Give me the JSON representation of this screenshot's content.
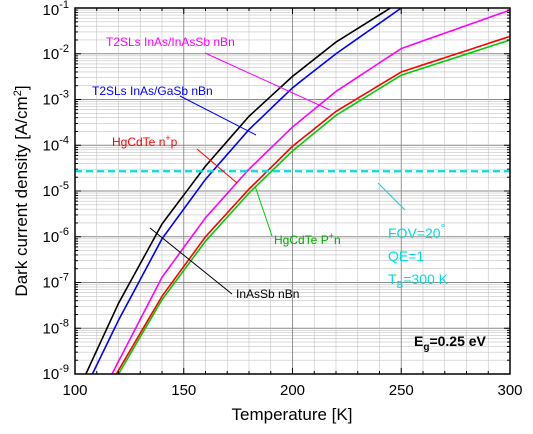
{
  "chart_data": {
    "type": "line",
    "xlabel": "Temperature [K]",
    "ylabel_main": "Dark current density [A/cm",
    "ylabel_sup": "2",
    "ylabel_end": "]",
    "xlim": [
      100,
      300
    ],
    "ylim": [
      1e-09,
      0.1
    ],
    "y_scale": "log",
    "grid": true,
    "x_ticks": [
      "100",
      "150",
      "200",
      "250",
      "300"
    ],
    "x_tick_values": [
      100,
      150,
      200,
      250,
      300
    ],
    "y_ticks": [
      {
        "base": "10",
        "exp": "-9",
        "value": 1e-09
      },
      {
        "base": "10",
        "exp": "-8",
        "value": 1e-08
      },
      {
        "base": "10",
        "exp": "-7",
        "value": 1e-07
      },
      {
        "base": "10",
        "exp": "-6",
        "value": 1e-06
      },
      {
        "base": "10",
        "exp": "-5",
        "value": 1e-05
      },
      {
        "base": "10",
        "exp": "-4",
        "value": 0.0001
      },
      {
        "base": "10",
        "exp": "-3",
        "value": 0.001
      },
      {
        "base": "10",
        "exp": "-2",
        "value": 0.01
      },
      {
        "base": "10",
        "exp": "-1",
        "value": 0.1
      }
    ],
    "series": [
      {
        "name": "InAsSb nBn",
        "color": "#000000",
        "x": [
          105,
          120,
          140,
          160,
          180,
          200,
          220,
          245
        ],
        "y": [
          1e-09,
          3.5e-08,
          1.9e-06,
          3.5e-05,
          0.00043,
          0.0032,
          0.018,
          0.1
        ]
      },
      {
        "name": "T2SLs InAs/GaSb nBn",
        "color": "#0000ff",
        "x": [
          108,
          120,
          140,
          160,
          180,
          200,
          220,
          250
        ],
        "y": [
          1e-09,
          1.5e-08,
          9e-07,
          1.8e-05,
          0.00022,
          0.0018,
          0.01,
          0.1
        ]
      },
      {
        "name": "T2SLs InAs/InAsSb nBn",
        "color": "#ff00ff",
        "x": [
          117,
          140,
          160,
          180,
          200,
          220,
          250,
          300
        ],
        "y": [
          1e-09,
          1.3e-07,
          2.6e-06,
          3e-05,
          0.00025,
          0.0015,
          0.013,
          0.09
        ]
      },
      {
        "name": "HgCdTe n+p",
        "color": "#ff0000",
        "x": [
          119,
          140,
          160,
          180,
          200,
          220,
          250,
          300
        ],
        "y": [
          1e-09,
          5e-08,
          1e-06,
          1.1e-05,
          9.5e-05,
          0.00055,
          0.004,
          0.024
        ]
      },
      {
        "name": "HgCdTe P+n",
        "color": "#00cc00",
        "x": [
          120,
          140,
          160,
          180,
          200,
          220,
          250,
          300
        ],
        "y": [
          1e-09,
          4.2e-08,
          8e-07,
          9e-06,
          7.5e-05,
          0.00045,
          0.0034,
          0.02
        ]
      }
    ],
    "reference_line": {
      "y": 2.7e-05,
      "color": "#00dddd",
      "style": "dashed"
    },
    "labels": {
      "t2sl_insb": "T2SLs InAs/InAsSb nBn",
      "t2sl_gasb": "T2SLs InAs/GaSb nBn",
      "hgcdte_np_main": "HgCdTe n",
      "hgcdte_np_sup": "+",
      "hgcdte_np_end": "p",
      "hgcdte_pn_main": "HgCdTe P",
      "hgcdte_pn_sup": "+",
      "hgcdte_pn_end": "n",
      "inassb": "InAsSb nBn"
    },
    "annotations": {
      "fov_main": "FOV=20",
      "fov_deg": "°",
      "qe": "QE=1",
      "tb_main": "T",
      "tb_sub": "B",
      "tb_end": "=300 K",
      "eg_main": "E",
      "eg_sub": "g",
      "eg_end": "=0.25 eV"
    }
  }
}
